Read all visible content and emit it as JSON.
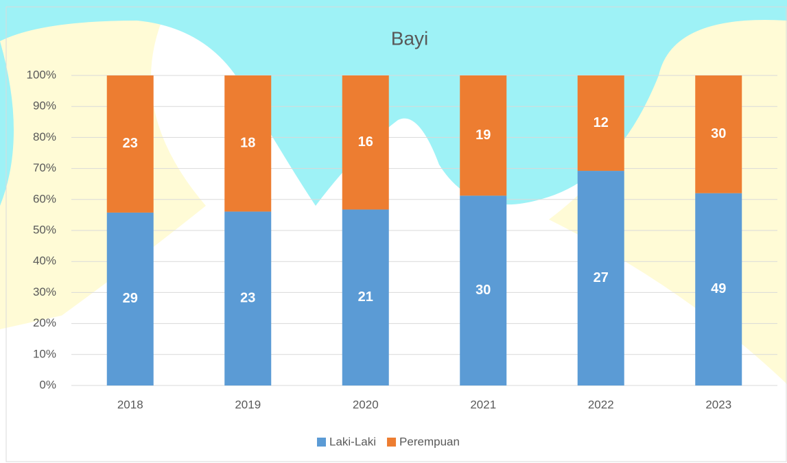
{
  "chart_data": {
    "type": "bar",
    "stacking": "percent",
    "title": "Bayi",
    "categories": [
      "2018",
      "2019",
      "2020",
      "2021",
      "2022",
      "2023"
    ],
    "series": [
      {
        "name": "Laki-Laki",
        "color": "#5b9bd5",
        "values": [
          29,
          23,
          21,
          30,
          27,
          49
        ]
      },
      {
        "name": "Perempuan",
        "color": "#ed7d31",
        "values": [
          23,
          18,
          16,
          19,
          12,
          30
        ]
      }
    ],
    "ylim": [
      0,
      100
    ],
    "yticks": [
      {
        "value": 0,
        "label": "0%"
      },
      {
        "value": 10,
        "label": "10%"
      },
      {
        "value": 20,
        "label": "20%"
      },
      {
        "value": 30,
        "label": "30%"
      },
      {
        "value": 40,
        "label": "40%"
      },
      {
        "value": 50,
        "label": "50%"
      },
      {
        "value": 60,
        "label": "60%"
      },
      {
        "value": 70,
        "label": "70%"
      },
      {
        "value": 80,
        "label": "80%"
      },
      {
        "value": 90,
        "label": "90%"
      },
      {
        "value": 100,
        "label": "100%"
      }
    ],
    "grid": true,
    "legend": "bottom"
  }
}
